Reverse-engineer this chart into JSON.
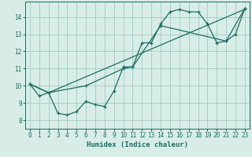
{
  "xlabel": "Humidex (Indice chaleur)",
  "bg_color": "#d8ede8",
  "grid_color": "#a8cfc5",
  "line_color": "#1a6e60",
  "xlim": [
    -0.5,
    23.5
  ],
  "ylim": [
    7.5,
    14.9
  ],
  "xticks": [
    0,
    1,
    2,
    3,
    4,
    5,
    6,
    7,
    8,
    9,
    10,
    11,
    12,
    13,
    14,
    15,
    16,
    17,
    18,
    19,
    20,
    21,
    22,
    23
  ],
  "yticks": [
    8,
    9,
    10,
    11,
    12,
    13,
    14
  ],
  "line1_x": [
    0,
    1,
    2,
    3,
    4,
    5,
    6,
    7,
    8,
    9,
    10,
    11,
    12,
    13,
    14,
    15,
    16,
    17,
    18,
    19,
    20,
    21,
    22,
    23
  ],
  "line1_y": [
    10.1,
    9.4,
    9.6,
    8.4,
    8.3,
    8.5,
    9.1,
    8.9,
    8.8,
    9.7,
    11.1,
    11.1,
    12.5,
    12.5,
    13.6,
    14.3,
    14.45,
    14.3,
    14.3,
    13.6,
    12.5,
    12.6,
    13.0,
    14.5
  ],
  "line2_x": [
    0,
    2,
    6,
    10,
    11,
    14,
    21,
    23
  ],
  "line2_y": [
    10.1,
    9.6,
    10.0,
    11.0,
    11.1,
    13.5,
    12.6,
    14.5
  ],
  "line3_x": [
    0,
    2,
    23
  ],
  "line3_y": [
    10.1,
    9.6,
    14.45
  ]
}
